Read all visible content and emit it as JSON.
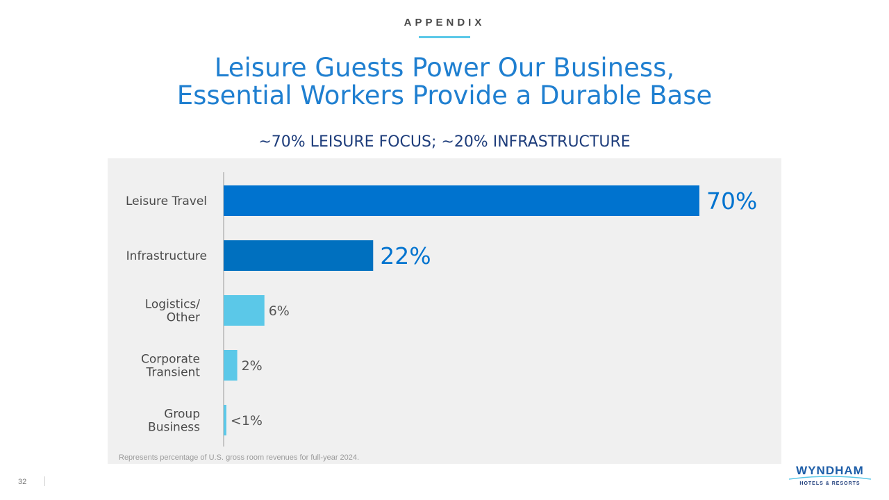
{
  "header": {
    "section_label": "APPENDIX",
    "title_line1": "Leisure Guests Power Our Business,",
    "title_line2": "Essential Workers Provide a Durable Base",
    "subtitle": "~70% LEISURE FOCUS; ~20% INFRASTRUCTURE"
  },
  "chart_data": {
    "type": "bar",
    "orientation": "horizontal",
    "title": "~70% LEISURE FOCUS; ~20% INFRASTRUCTURE",
    "categories": [
      [
        "Leisure Travel"
      ],
      [
        "Infrastructure"
      ],
      [
        "Logistics/",
        "Other"
      ],
      [
        "Corporate",
        "Transient"
      ],
      [
        "Group",
        "Business"
      ]
    ],
    "values": [
      70,
      22,
      6,
      2,
      0.4
    ],
    "data_labels": [
      "70%",
      "22%",
      "6%",
      "2%",
      "<1%"
    ],
    "colors": [
      "#0073cf",
      "#0070bf",
      "#5bc8e8",
      "#5bc8e8",
      "#5bc8e8"
    ],
    "label_colors": [
      "#0073cf",
      "#0073cf",
      "#555555",
      "#555555",
      "#555555"
    ],
    "xlim": [
      0,
      70
    ],
    "grid": false,
    "legend": "none"
  },
  "footnote": "Represents percentage of U.S. gross room revenues for full-year 2024.",
  "footer": {
    "page_number": "32",
    "logo_text": "WYNDHAM",
    "logo_subtext": "HOTELS & RESORTS"
  }
}
